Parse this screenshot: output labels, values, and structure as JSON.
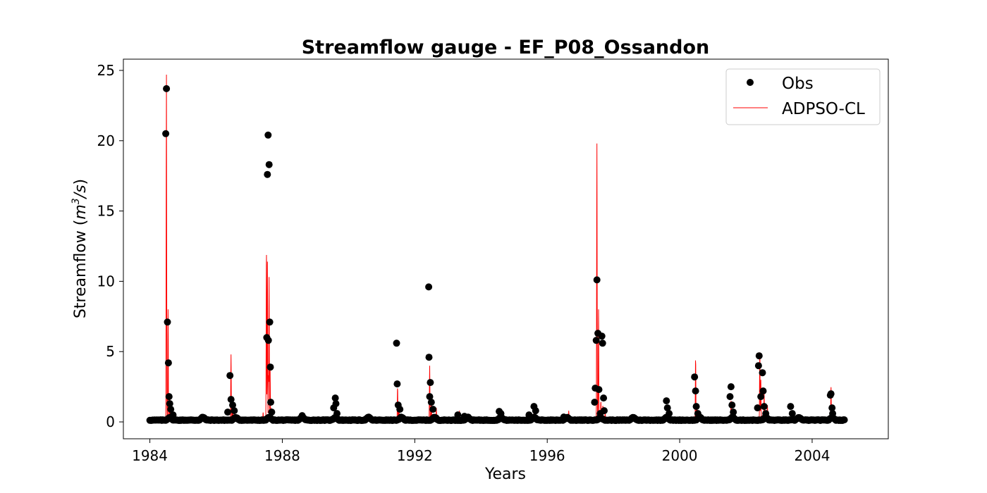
{
  "chart_data": {
    "type": "scatter+line",
    "title": "Streamflow gauge - EF_P08_Ossandon",
    "xlabel": "Years",
    "ylabel_prefix": "Streamflow (",
    "ylabel_unit_base": "m",
    "ylabel_unit_sup": "3",
    "ylabel_unit_rest": "/s",
    "ylabel_suffix": ")",
    "xlim": [
      1983.2,
      2006.3
    ],
    "ylim": [
      -1.2,
      25.8
    ],
    "xticks": [
      1984,
      1988,
      1992,
      1996,
      2000,
      2004
    ],
    "yticks": [
      0,
      5,
      10,
      15,
      20,
      25
    ],
    "grid": false,
    "legend_position": "top-right",
    "baseline": 0.1,
    "series": [
      {
        "name": "Obs",
        "kind": "scatter",
        "color": "#000000",
        "peaks": [
          [
            1984.5,
            23.7
          ],
          [
            1984.48,
            20.5
          ],
          [
            1984.53,
            7.1
          ],
          [
            1984.56,
            4.2
          ],
          [
            1984.58,
            1.8
          ],
          [
            1984.6,
            1.3
          ],
          [
            1984.63,
            0.9
          ],
          [
            1984.7,
            0.5
          ],
          [
            1986.42,
            3.3
          ],
          [
            1986.45,
            1.6
          ],
          [
            1986.5,
            1.2
          ],
          [
            1986.55,
            0.8
          ],
          [
            1986.35,
            0.7
          ],
          [
            1987.55,
            17.6
          ],
          [
            1987.57,
            20.4
          ],
          [
            1987.6,
            18.3
          ],
          [
            1987.53,
            6.0
          ],
          [
            1987.58,
            5.8
          ],
          [
            1987.62,
            7.1
          ],
          [
            1987.64,
            3.9
          ],
          [
            1987.65,
            1.4
          ],
          [
            1987.68,
            0.7
          ],
          [
            1988.6,
            0.45
          ],
          [
            1989.6,
            1.7
          ],
          [
            1989.62,
            1.3
          ],
          [
            1989.55,
            1.0
          ],
          [
            1989.65,
            0.6
          ],
          [
            1991.45,
            5.6
          ],
          [
            1991.47,
            2.7
          ],
          [
            1991.5,
            1.2
          ],
          [
            1991.55,
            0.9
          ],
          [
            1992.42,
            9.6
          ],
          [
            1992.43,
            4.6
          ],
          [
            1992.47,
            2.8
          ],
          [
            1992.45,
            1.8
          ],
          [
            1992.5,
            1.4
          ],
          [
            1992.55,
            0.9
          ],
          [
            1993.3,
            0.5
          ],
          [
            1993.5,
            0.4
          ],
          [
            1994.55,
            0.75
          ],
          [
            1994.6,
            0.6
          ],
          [
            1995.45,
            0.5
          ],
          [
            1995.6,
            1.1
          ],
          [
            1995.65,
            0.8
          ],
          [
            1996.5,
            0.35
          ],
          [
            1997.45,
            2.4
          ],
          [
            1997.5,
            10.1
          ],
          [
            1997.48,
            5.8
          ],
          [
            1997.53,
            6.3
          ],
          [
            1997.56,
            2.3
          ],
          [
            1997.43,
            1.4
          ],
          [
            1997.65,
            6.1
          ],
          [
            1997.67,
            5.6
          ],
          [
            1997.7,
            1.7
          ],
          [
            1997.72,
            0.8
          ],
          [
            1997.6,
            0.6
          ],
          [
            1999.6,
            1.5
          ],
          [
            1999.63,
            1.0
          ],
          [
            1999.68,
            0.6
          ],
          [
            2000.45,
            3.2
          ],
          [
            2000.48,
            2.2
          ],
          [
            2000.5,
            1.1
          ],
          [
            2000.55,
            0.6
          ],
          [
            2001.55,
            2.5
          ],
          [
            2001.52,
            1.8
          ],
          [
            2001.58,
            1.2
          ],
          [
            2001.62,
            0.7
          ],
          [
            2002.38,
            4.0
          ],
          [
            2002.4,
            4.7
          ],
          [
            2002.35,
            1.0
          ],
          [
            2002.45,
            1.8
          ],
          [
            2002.5,
            3.5
          ],
          [
            2002.52,
            2.2
          ],
          [
            2002.55,
            1.1
          ],
          [
            2002.6,
            0.6
          ],
          [
            2003.35,
            1.1
          ],
          [
            2003.4,
            0.6
          ],
          [
            2004.55,
            1.9
          ],
          [
            2004.57,
            2.0
          ],
          [
            2004.6,
            1.0
          ],
          [
            2004.62,
            0.6
          ]
        ]
      },
      {
        "name": "ADPSO-CL",
        "kind": "line",
        "color": "#ff0000",
        "peaks": [
          [
            1984.5,
            24.7
          ],
          [
            1984.55,
            8.0
          ],
          [
            1984.6,
            2.0
          ],
          [
            1986.45,
            4.8
          ],
          [
            1986.5,
            1.5
          ],
          [
            1987.42,
            0.7
          ],
          [
            1987.52,
            12.5
          ],
          [
            1987.55,
            11.4
          ],
          [
            1987.58,
            3.5
          ],
          [
            1987.6,
            10.3
          ],
          [
            1987.63,
            4.0
          ],
          [
            1987.66,
            1.0
          ],
          [
            1988.6,
            0.4
          ],
          [
            1989.6,
            1.2
          ],
          [
            1991.48,
            2.5
          ],
          [
            1991.52,
            1.2
          ],
          [
            1992.45,
            4.0
          ],
          [
            1992.5,
            1.7
          ],
          [
            1992.65,
            1.0
          ],
          [
            1993.35,
            0.8
          ],
          [
            1993.45,
            0.6
          ],
          [
            1994.55,
            0.6
          ],
          [
            1995.6,
            0.7
          ],
          [
            1996.65,
            0.8
          ],
          [
            1997.5,
            19.8
          ],
          [
            1997.55,
            8.0
          ],
          [
            1997.62,
            1.5
          ],
          [
            1997.68,
            1.2
          ],
          [
            1997.75,
            0.7
          ],
          [
            1998.5,
            0.3
          ],
          [
            1999.62,
            0.9
          ],
          [
            2000.48,
            4.6
          ],
          [
            2000.52,
            1.3
          ],
          [
            2001.55,
            1.5
          ],
          [
            2001.6,
            0.9
          ],
          [
            2002.42,
            5.2
          ],
          [
            2002.45,
            3.0
          ],
          [
            2002.55,
            2.0
          ],
          [
            2002.65,
            1.2
          ],
          [
            2003.4,
            0.7
          ],
          [
            2004.57,
            2.6
          ],
          [
            2004.62,
            1.0
          ]
        ]
      }
    ]
  }
}
